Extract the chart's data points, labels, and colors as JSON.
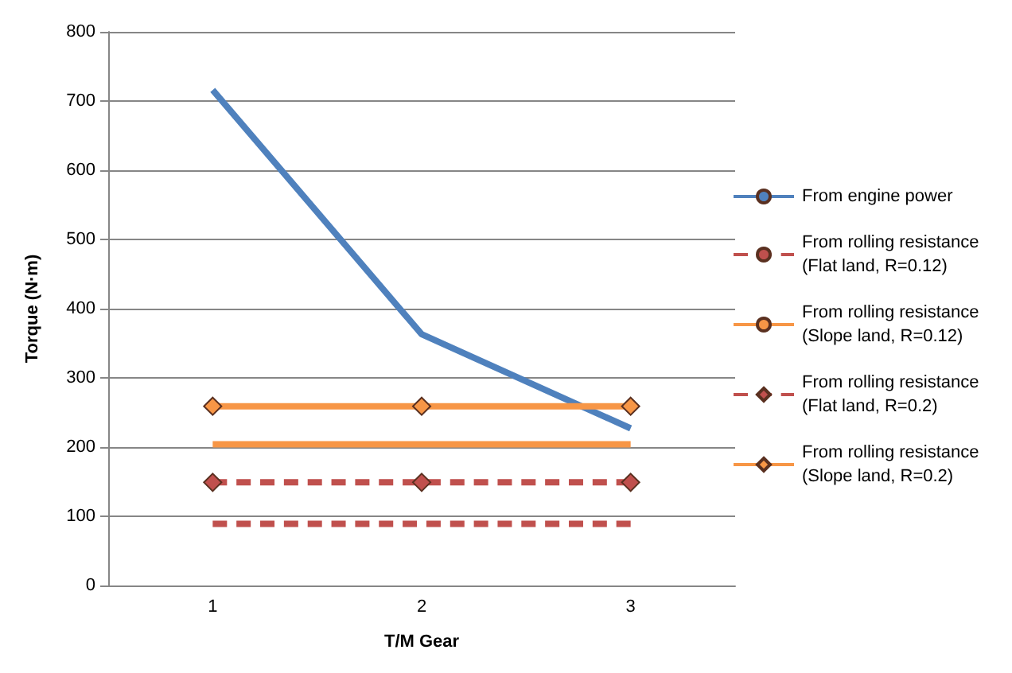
{
  "chart_data": {
    "type": "line",
    "xlabel": "T/M Gear",
    "ylabel": "Torque (N·m)",
    "categories": [
      "1",
      "2",
      "3"
    ],
    "ylim": [
      0,
      800
    ],
    "yticks": [
      0,
      100,
      200,
      300,
      400,
      500,
      600,
      700,
      800
    ],
    "grid": "y",
    "legend": "right",
    "series": [
      {
        "name": "From engine power",
        "color": "#4f81bd",
        "values": [
          716,
          363,
          227
        ],
        "line_style": "solid",
        "marker": "none"
      },
      {
        "name": "From rolling resistance (Flat land, R=0.12)",
        "color": "#c0504d",
        "values": [
          89,
          89,
          89
        ],
        "line_style": "dashed",
        "marker": "none"
      },
      {
        "name": "From rolling resistance (Slope land, R=0.12)",
        "color": "#f79646",
        "values": [
          204,
          204,
          204
        ],
        "line_style": "solid",
        "marker": "none"
      },
      {
        "name": "From rolling resistance (Flat land, R=0.2)",
        "color": "#c0504d",
        "values": [
          149,
          149,
          149
        ],
        "line_style": "dashed",
        "marker": "diamond"
      },
      {
        "name": "From rolling resistance (Slope land, R=0.2)",
        "color": "#f79646",
        "values": [
          259,
          259,
          259
        ],
        "line_style": "solid",
        "marker": "diamond"
      }
    ]
  }
}
